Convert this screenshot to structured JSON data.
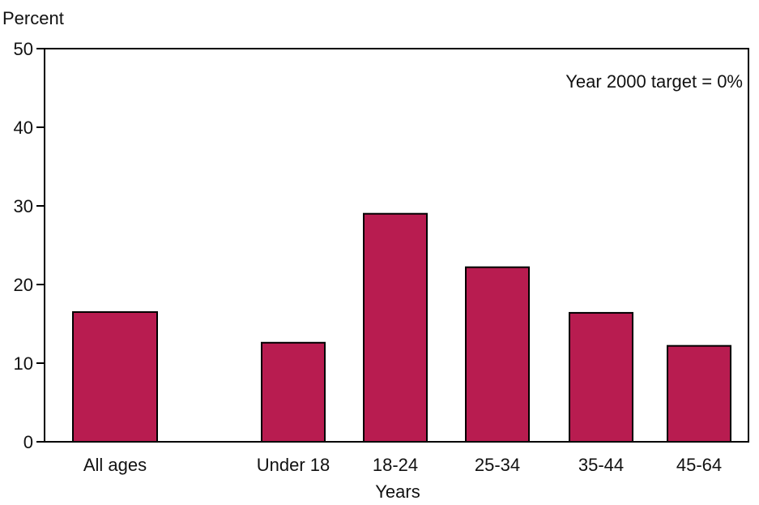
{
  "chart_data": {
    "type": "bar",
    "ylabel": "Percent",
    "xlabel": "Years",
    "annotation": "Year 2000 target = 0%",
    "ylim": [
      0,
      50
    ],
    "yticks": [
      "0",
      "10",
      "20",
      "30",
      "40",
      "50"
    ],
    "categories": [
      "All ages",
      "Under 18",
      "18-24",
      "25-34",
      "35-44",
      "45-64"
    ],
    "values": [
      16.5,
      12.6,
      29.0,
      22.2,
      16.4,
      12.2
    ],
    "grid": false,
    "bar_color": "#B81C50",
    "bar_outline_color": "#000000"
  }
}
